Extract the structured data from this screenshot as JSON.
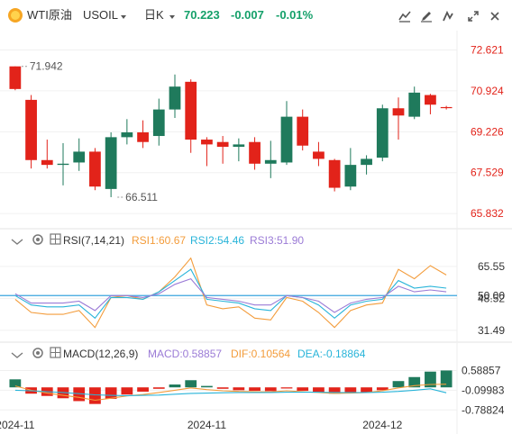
{
  "header": {
    "symbol_name": "WTI原油",
    "symbol_code": "USOIL",
    "period": "日K",
    "last_price": "70.223",
    "change": "-0.007",
    "change_pct": "-0.01%",
    "icons": [
      "coin-icon",
      "chevron-down-icon",
      "chevron-down-icon",
      "draw-line-icon",
      "pen-icon",
      "indicator-icon",
      "expand-icon",
      "close-icon"
    ]
  },
  "colors": {
    "up": "#1f7a5c",
    "down": "#e2231a",
    "price_change": "#15a06a",
    "rsi1": "#f39c3b",
    "rsi2": "#28b4d9",
    "rsi3": "#9b7bd6",
    "macd_dif": "#f39c3b",
    "macd_dea": "#28b4d9",
    "label_gray": "#555555",
    "level_line": "#3aa7e0"
  },
  "chart_data": [
    {
      "type": "candlestick",
      "yaxis_ticks": [
        "72.621",
        "70.924",
        "69.226",
        "67.529",
        "65.832"
      ],
      "y_tick_values": [
        72.621,
        70.924,
        69.226,
        67.529,
        65.832
      ],
      "ylim": [
        65.5,
        73.2
      ],
      "highlight_tick": "70.924",
      "annotations": [
        {
          "text": "71.942",
          "index": 0
        },
        {
          "text": "66.511",
          "index": 6
        }
      ],
      "candles": [
        {
          "o": 71.94,
          "c": 71.0,
          "h": 71.94,
          "l": 70.95
        },
        {
          "o": 70.55,
          "c": 68.05,
          "h": 70.75,
          "l": 67.7
        },
        {
          "o": 68.05,
          "c": 67.85,
          "h": 68.9,
          "l": 67.7
        },
        {
          "o": 67.85,
          "c": 67.9,
          "h": 68.75,
          "l": 67.0
        },
        {
          "o": 67.95,
          "c": 68.4,
          "h": 68.95,
          "l": 67.6
        },
        {
          "o": 68.4,
          "c": 66.95,
          "h": 68.55,
          "l": 66.8
        },
        {
          "o": 66.85,
          "c": 69.0,
          "h": 69.2,
          "l": 66.51
        },
        {
          "o": 69.0,
          "c": 69.2,
          "h": 69.75,
          "l": 68.7
        },
        {
          "o": 69.2,
          "c": 68.8,
          "h": 69.7,
          "l": 68.55
        },
        {
          "o": 69.05,
          "c": 70.15,
          "h": 70.6,
          "l": 68.65
        },
        {
          "o": 70.15,
          "c": 71.1,
          "h": 71.6,
          "l": 69.8
        },
        {
          "o": 71.3,
          "c": 68.9,
          "h": 71.4,
          "l": 68.35
        },
        {
          "o": 68.9,
          "c": 68.7,
          "h": 69.0,
          "l": 67.8
        },
        {
          "o": 68.8,
          "c": 68.6,
          "h": 69.05,
          "l": 67.9
        },
        {
          "o": 68.6,
          "c": 68.7,
          "h": 68.95,
          "l": 68.0
        },
        {
          "o": 68.8,
          "c": 67.9,
          "h": 69.0,
          "l": 67.65
        },
        {
          "o": 67.9,
          "c": 68.05,
          "h": 68.85,
          "l": 67.3
        },
        {
          "o": 67.95,
          "c": 69.85,
          "h": 70.5,
          "l": 67.85
        },
        {
          "o": 69.85,
          "c": 68.65,
          "h": 70.15,
          "l": 68.45
        },
        {
          "o": 68.4,
          "c": 68.1,
          "h": 68.8,
          "l": 67.8
        },
        {
          "o": 68.05,
          "c": 66.9,
          "h": 68.1,
          "l": 66.75
        },
        {
          "o": 66.95,
          "c": 67.85,
          "h": 68.55,
          "l": 66.8
        },
        {
          "o": 67.85,
          "c": 68.1,
          "h": 68.25,
          "l": 67.45
        },
        {
          "o": 68.15,
          "c": 70.2,
          "h": 70.35,
          "l": 68.0
        },
        {
          "o": 70.2,
          "c": 69.9,
          "h": 70.65,
          "l": 68.9
        },
        {
          "o": 69.85,
          "c": 70.85,
          "h": 71.1,
          "l": 69.75
        },
        {
          "o": 70.75,
          "c": 70.35,
          "h": 70.8,
          "l": 69.95
        },
        {
          "o": 70.25,
          "c": 70.22,
          "h": 70.3,
          "l": 70.15
        }
      ]
    },
    {
      "type": "line",
      "title": "RSI(7,14,21)",
      "legend": [
        {
          "key": "rsi1",
          "text": "RSI1:60.67"
        },
        {
          "key": "rsi2",
          "text": "RSI2:54.46"
        },
        {
          "key": "rsi3",
          "text": "RSI3:51.90"
        }
      ],
      "yaxis_ticks": [
        "65.55",
        "50.00",
        "48.52",
        "31.49"
      ],
      "y_tick_values": [
        65.55,
        50.0,
        48.52,
        31.49
      ],
      "ylim": [
        29,
        78
      ],
      "reference_level": 50,
      "series": [
        {
          "key": "rsi1",
          "values": [
            48,
            41,
            40,
            40,
            42,
            33,
            49,
            50,
            48,
            52,
            60,
            70,
            45,
            43,
            44,
            38,
            37,
            49,
            47,
            41,
            33,
            42,
            45,
            46,
            64,
            59,
            66,
            61
          ]
        },
        {
          "key": "rsi2",
          "values": [
            50,
            45,
            44,
            44,
            45,
            38,
            49,
            49,
            48,
            52,
            58,
            64,
            48,
            47,
            46,
            43,
            42,
            50,
            49,
            45,
            38,
            45,
            47,
            48,
            58,
            54,
            55,
            54
          ]
        },
        {
          "key": "rsi3",
          "values": [
            51,
            46,
            46,
            46,
            47,
            42,
            50,
            50,
            49,
            51,
            56,
            59,
            49,
            48,
            47,
            45,
            45,
            50,
            49,
            47,
            41,
            46,
            48,
            49,
            55,
            52,
            53,
            52
          ]
        }
      ]
    },
    {
      "type": "bar",
      "title": "MACD(12,26,9)",
      "legend": [
        {
          "key": "macd",
          "text": "MACD:0.58857"
        },
        {
          "key": "macd_dif",
          "text": "DIF:0.10564"
        },
        {
          "key": "macd_dea",
          "text": "DEA:-0.18864"
        }
      ],
      "yaxis_ticks": [
        "0.58857",
        "-0.09983",
        "-0.78824"
      ],
      "y_tick_values": [
        0.58857,
        -0.09983,
        -0.78824
      ],
      "ylim": [
        -1.0,
        0.95
      ],
      "macd": [
        0.28,
        -0.22,
        -0.3,
        -0.38,
        -0.48,
        -0.58,
        -0.4,
        -0.25,
        -0.15,
        -0.05,
        0.1,
        0.25,
        0.05,
        -0.05,
        -0.1,
        -0.12,
        -0.13,
        -0.04,
        -0.12,
        -0.18,
        -0.22,
        -0.2,
        -0.18,
        -0.1,
        0.22,
        0.36,
        0.55,
        0.59
      ],
      "dif": [
        0.05,
        -0.1,
        -0.2,
        -0.28,
        -0.35,
        -0.45,
        -0.38,
        -0.3,
        -0.25,
        -0.18,
        -0.1,
        -0.02,
        -0.08,
        -0.12,
        -0.14,
        -0.15,
        -0.16,
        -0.12,
        -0.15,
        -0.18,
        -0.21,
        -0.2,
        -0.18,
        -0.12,
        -0.02,
        0.06,
        0.1,
        0.11
      ],
      "dea": [
        -0.1,
        -0.12,
        -0.15,
        -0.18,
        -0.22,
        -0.26,
        -0.28,
        -0.29,
        -0.28,
        -0.27,
        -0.24,
        -0.21,
        -0.2,
        -0.19,
        -0.18,
        -0.18,
        -0.18,
        -0.17,
        -0.17,
        -0.17,
        -0.18,
        -0.18,
        -0.18,
        -0.17,
        -0.14,
        -0.1,
        -0.05,
        -0.19
      ]
    }
  ],
  "xaxis_ticks": [
    {
      "text": "2024-11",
      "index": 0
    },
    {
      "text": "2024-11",
      "index": 12
    },
    {
      "text": "2024-12",
      "index": 23
    }
  ]
}
